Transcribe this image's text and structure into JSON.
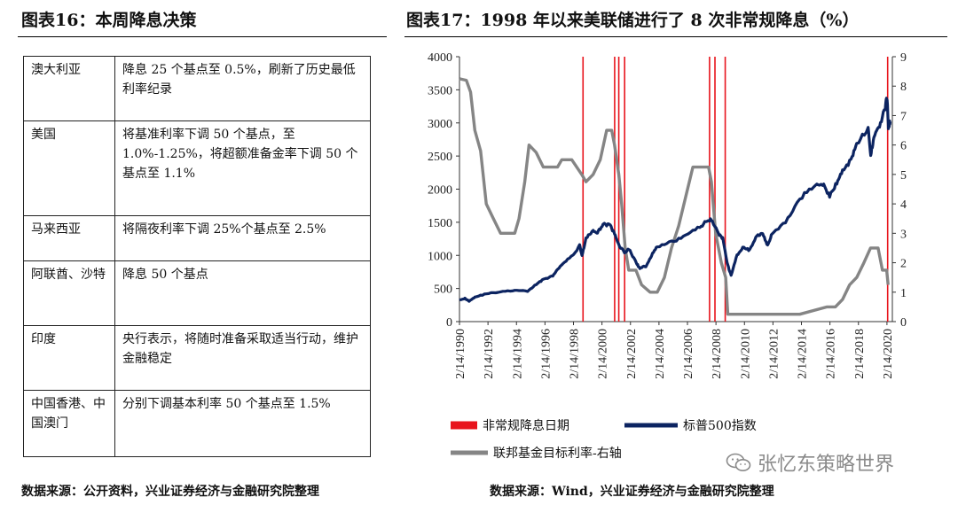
{
  "left": {
    "title": "图表16：本周降息决策",
    "rows": [
      {
        "country": "澳大利亚",
        "action": "降息 25 个基点至 0.5%，刷新了历史最低利率纪录"
      },
      {
        "country": "美国",
        "action": "将基准利率下调 50 个基点，至 1.0%-1.25%，将超额准备金率下调 50 个基点至 1.1%"
      },
      {
        "country": "马来西亚",
        "action": "将隔夜利率下调 25%个基点至 2.5%"
      },
      {
        "country": "阿联酋、沙特",
        "action": "降息 50 个基点"
      },
      {
        "country": "印度",
        "action": "央行表示，将随时准备采取适当行动，维护金融稳定"
      },
      {
        "country": "中国香港、中国澳门",
        "action": "分别下调基本利率 50 个基点至 1.5%"
      }
    ],
    "source": "数据来源：公开资料，兴业证券经济与金融研究院整理"
  },
  "right": {
    "title": "图表17：1998 年以来美联储进行了 8 次非常规降息（%）",
    "source": "数据来源：Wind，兴业证券经济与金融研究院整理",
    "watermark": "张忆东策略世界"
  },
  "chart_data": {
    "type": "line",
    "x_tick_labels": [
      "2/14/1990",
      "2/14/1992",
      "2/14/1994",
      "2/14/1996",
      "2/14/1998",
      "2/14/2000",
      "2/14/2002",
      "2/14/2004",
      "2/14/2006",
      "2/14/2008",
      "2/14/2010",
      "2/14/2012",
      "2/14/2014",
      "2/14/2016",
      "2/14/2018",
      "2/14/2020"
    ],
    "xlim": [
      1990.12,
      2020.5
    ],
    "y_left": {
      "ylim": [
        0,
        4000
      ],
      "ticks": [
        0,
        500,
        1000,
        1500,
        2000,
        2500,
        3000,
        3500,
        4000
      ]
    },
    "y_right": {
      "ylim": [
        0,
        9
      ],
      "ticks": [
        0,
        1,
        2,
        3,
        4,
        5,
        6,
        7,
        8,
        9
      ]
    },
    "grid": false,
    "legend_position": "bottom",
    "series": [
      {
        "name": "非常规降息日期",
        "style": "vertical-lines",
        "color": "#e8141c",
        "x": [
          1998.79,
          2001.01,
          2001.3,
          2001.71,
          2007.67,
          2008.05,
          2008.77,
          2020.17
        ]
      },
      {
        "name": "标普500指数",
        "axis": "left",
        "color": "#0c2461",
        "x": [
          1990.12,
          1990.5,
          1990.8,
          1991.2,
          1992.0,
          1993.0,
          1994.0,
          1994.9,
          1995.5,
          1996.0,
          1996.6,
          1997.0,
          1997.6,
          1998.0,
          1998.55,
          1998.72,
          1999.0,
          1999.5,
          1999.8,
          2000.2,
          2000.7,
          2001.0,
          2001.3,
          2001.7,
          2002.0,
          2002.55,
          2002.78,
          2003.2,
          2003.6,
          2004.0,
          2005.0,
          2006.0,
          2007.0,
          2007.5,
          2007.78,
          2008.3,
          2008.6,
          2008.9,
          2009.18,
          2009.6,
          2010.0,
          2010.5,
          2011.0,
          2011.4,
          2011.75,
          2012.0,
          2013.0,
          2014.0,
          2015.0,
          2015.6,
          2016.1,
          2016.6,
          2017.0,
          2017.6,
          2018.0,
          2018.8,
          2018.98,
          2019.2,
          2019.6,
          2020.0,
          2020.13,
          2020.22,
          2020.35
        ],
        "values": [
          330,
          350,
          310,
          370,
          420,
          450,
          470,
          460,
          560,
          640,
          680,
          780,
          920,
          980,
          1150,
          1000,
          1250,
          1380,
          1330,
          1480,
          1450,
          1320,
          1160,
          1040,
          1100,
          880,
          800,
          840,
          1000,
          1130,
          1200,
          1300,
          1430,
          1520,
          1550,
          1330,
          1250,
          880,
          700,
          1000,
          1120,
          1080,
          1300,
          1340,
          1150,
          1300,
          1500,
          1850,
          2060,
          2080,
          1890,
          2100,
          2270,
          2450,
          2700,
          2900,
          2510,
          2800,
          2950,
          3230,
          3380,
          2950,
          3020
        ]
      },
      {
        "name": "联邦基金目标利率-右轴",
        "axis": "right",
        "color": "#858585",
        "x": [
          1990.12,
          1990.6,
          1990.9,
          1991.2,
          1991.6,
          1992.0,
          1992.5,
          1993.0,
          1994.0,
          1994.3,
          1994.7,
          1995.0,
          1995.5,
          1996.0,
          1996.4,
          1997.0,
          1997.3,
          1998.0,
          1998.7,
          1999.0,
          1999.5,
          2000.0,
          2000.45,
          2000.8,
          2001.0,
          2001.3,
          2001.5,
          2001.75,
          2002.0,
          2002.5,
          2002.9,
          2003.5,
          2004.0,
          2004.5,
          2005.0,
          2005.5,
          2006.0,
          2006.5,
          2007.0,
          2007.6,
          2007.8,
          2008.1,
          2008.5,
          2008.8,
          2008.95,
          2010.0,
          2012.0,
          2014.0,
          2015.92,
          2016.5,
          2017.0,
          2017.5,
          2018.0,
          2018.5,
          2018.97,
          2019.5,
          2019.8,
          2020.1,
          2020.2
        ],
        "values": [
          8.25,
          8.2,
          7.8,
          6.5,
          5.8,
          4.0,
          3.5,
          3.0,
          3.0,
          3.5,
          4.75,
          6.0,
          5.75,
          5.25,
          5.25,
          5.25,
          5.5,
          5.5,
          5.0,
          4.75,
          5.0,
          5.5,
          6.5,
          6.5,
          6.0,
          5.0,
          4.0,
          2.5,
          1.75,
          1.75,
          1.25,
          1.0,
          1.0,
          1.5,
          2.5,
          3.25,
          4.25,
          5.25,
          5.25,
          5.25,
          4.75,
          3.0,
          2.0,
          1.5,
          0.25,
          0.25,
          0.25,
          0.25,
          0.5,
          0.5,
          0.75,
          1.25,
          1.5,
          2.0,
          2.5,
          2.5,
          1.75,
          1.75,
          1.25
        ]
      }
    ]
  }
}
